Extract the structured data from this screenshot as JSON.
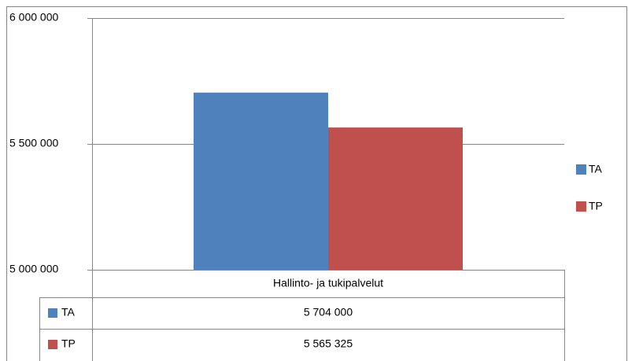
{
  "chart_data": {
    "type": "bar",
    "categories": [
      "Hallinto- ja tukipalvelut"
    ],
    "series": [
      {
        "name": "TA",
        "color": "#4f81bd",
        "values": [
          5704000
        ],
        "value_labels": [
          "5 704 000"
        ]
      },
      {
        "name": "TP",
        "color": "#c0504d",
        "values": [
          5565325
        ],
        "value_labels": [
          "5 565 325"
        ]
      }
    ],
    "ylim": [
      5000000,
      6000000
    ],
    "yticks": [
      {
        "value": 5000000,
        "label": "5 000 000"
      },
      {
        "value": 5500000,
        "label": "5 500 000"
      },
      {
        "value": 6000000,
        "label": "6 000 000"
      }
    ],
    "grid": true,
    "legend": "right",
    "data_table": true
  }
}
